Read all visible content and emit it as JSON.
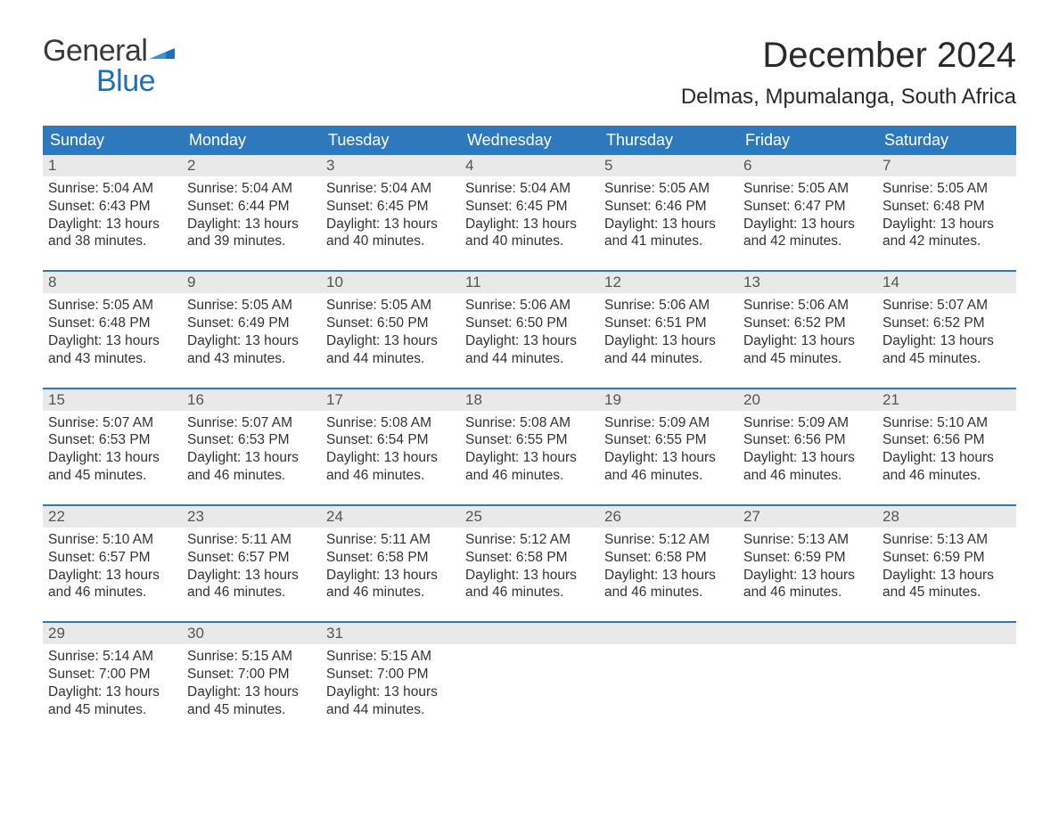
{
  "logo": {
    "text1": "General",
    "text2": "Blue",
    "flag_color": "#1e6fb8",
    "text1_color": "#3a3a3a"
  },
  "title": "December 2024",
  "location": "Delmas, Mpumalanga, South Africa",
  "header_bg": "#2e78bc",
  "header_fg": "#ffffff",
  "daynum_bg": "#e9e9e9",
  "border_color": "#2e78bc",
  "text_color": "#333333",
  "weekdays": [
    "Sunday",
    "Monday",
    "Tuesday",
    "Wednesday",
    "Thursday",
    "Friday",
    "Saturday"
  ],
  "weeks": [
    [
      {
        "n": "1",
        "sunrise": "Sunrise: 5:04 AM",
        "sunset": "Sunset: 6:43 PM",
        "d1": "Daylight: 13 hours",
        "d2": "and 38 minutes."
      },
      {
        "n": "2",
        "sunrise": "Sunrise: 5:04 AM",
        "sunset": "Sunset: 6:44 PM",
        "d1": "Daylight: 13 hours",
        "d2": "and 39 minutes."
      },
      {
        "n": "3",
        "sunrise": "Sunrise: 5:04 AM",
        "sunset": "Sunset: 6:45 PM",
        "d1": "Daylight: 13 hours",
        "d2": "and 40 minutes."
      },
      {
        "n": "4",
        "sunrise": "Sunrise: 5:04 AM",
        "sunset": "Sunset: 6:45 PM",
        "d1": "Daylight: 13 hours",
        "d2": "and 40 minutes."
      },
      {
        "n": "5",
        "sunrise": "Sunrise: 5:05 AM",
        "sunset": "Sunset: 6:46 PM",
        "d1": "Daylight: 13 hours",
        "d2": "and 41 minutes."
      },
      {
        "n": "6",
        "sunrise": "Sunrise: 5:05 AM",
        "sunset": "Sunset: 6:47 PM",
        "d1": "Daylight: 13 hours",
        "d2": "and 42 minutes."
      },
      {
        "n": "7",
        "sunrise": "Sunrise: 5:05 AM",
        "sunset": "Sunset: 6:48 PM",
        "d1": "Daylight: 13 hours",
        "d2": "and 42 minutes."
      }
    ],
    [
      {
        "n": "8",
        "sunrise": "Sunrise: 5:05 AM",
        "sunset": "Sunset: 6:48 PM",
        "d1": "Daylight: 13 hours",
        "d2": "and 43 minutes."
      },
      {
        "n": "9",
        "sunrise": "Sunrise: 5:05 AM",
        "sunset": "Sunset: 6:49 PM",
        "d1": "Daylight: 13 hours",
        "d2": "and 43 minutes."
      },
      {
        "n": "10",
        "sunrise": "Sunrise: 5:05 AM",
        "sunset": "Sunset: 6:50 PM",
        "d1": "Daylight: 13 hours",
        "d2": "and 44 minutes."
      },
      {
        "n": "11",
        "sunrise": "Sunrise: 5:06 AM",
        "sunset": "Sunset: 6:50 PM",
        "d1": "Daylight: 13 hours",
        "d2": "and 44 minutes."
      },
      {
        "n": "12",
        "sunrise": "Sunrise: 5:06 AM",
        "sunset": "Sunset: 6:51 PM",
        "d1": "Daylight: 13 hours",
        "d2": "and 44 minutes."
      },
      {
        "n": "13",
        "sunrise": "Sunrise: 5:06 AM",
        "sunset": "Sunset: 6:52 PM",
        "d1": "Daylight: 13 hours",
        "d2": "and 45 minutes."
      },
      {
        "n": "14",
        "sunrise": "Sunrise: 5:07 AM",
        "sunset": "Sunset: 6:52 PM",
        "d1": "Daylight: 13 hours",
        "d2": "and 45 minutes."
      }
    ],
    [
      {
        "n": "15",
        "sunrise": "Sunrise: 5:07 AM",
        "sunset": "Sunset: 6:53 PM",
        "d1": "Daylight: 13 hours",
        "d2": "and 45 minutes."
      },
      {
        "n": "16",
        "sunrise": "Sunrise: 5:07 AM",
        "sunset": "Sunset: 6:53 PM",
        "d1": "Daylight: 13 hours",
        "d2": "and 46 minutes."
      },
      {
        "n": "17",
        "sunrise": "Sunrise: 5:08 AM",
        "sunset": "Sunset: 6:54 PM",
        "d1": "Daylight: 13 hours",
        "d2": "and 46 minutes."
      },
      {
        "n": "18",
        "sunrise": "Sunrise: 5:08 AM",
        "sunset": "Sunset: 6:55 PM",
        "d1": "Daylight: 13 hours",
        "d2": "and 46 minutes."
      },
      {
        "n": "19",
        "sunrise": "Sunrise: 5:09 AM",
        "sunset": "Sunset: 6:55 PM",
        "d1": "Daylight: 13 hours",
        "d2": "and 46 minutes."
      },
      {
        "n": "20",
        "sunrise": "Sunrise: 5:09 AM",
        "sunset": "Sunset: 6:56 PM",
        "d1": "Daylight: 13 hours",
        "d2": "and 46 minutes."
      },
      {
        "n": "21",
        "sunrise": "Sunrise: 5:10 AM",
        "sunset": "Sunset: 6:56 PM",
        "d1": "Daylight: 13 hours",
        "d2": "and 46 minutes."
      }
    ],
    [
      {
        "n": "22",
        "sunrise": "Sunrise: 5:10 AM",
        "sunset": "Sunset: 6:57 PM",
        "d1": "Daylight: 13 hours",
        "d2": "and 46 minutes."
      },
      {
        "n": "23",
        "sunrise": "Sunrise: 5:11 AM",
        "sunset": "Sunset: 6:57 PM",
        "d1": "Daylight: 13 hours",
        "d2": "and 46 minutes."
      },
      {
        "n": "24",
        "sunrise": "Sunrise: 5:11 AM",
        "sunset": "Sunset: 6:58 PM",
        "d1": "Daylight: 13 hours",
        "d2": "and 46 minutes."
      },
      {
        "n": "25",
        "sunrise": "Sunrise: 5:12 AM",
        "sunset": "Sunset: 6:58 PM",
        "d1": "Daylight: 13 hours",
        "d2": "and 46 minutes."
      },
      {
        "n": "26",
        "sunrise": "Sunrise: 5:12 AM",
        "sunset": "Sunset: 6:58 PM",
        "d1": "Daylight: 13 hours",
        "d2": "and 46 minutes."
      },
      {
        "n": "27",
        "sunrise": "Sunrise: 5:13 AM",
        "sunset": "Sunset: 6:59 PM",
        "d1": "Daylight: 13 hours",
        "d2": "and 46 minutes."
      },
      {
        "n": "28",
        "sunrise": "Sunrise: 5:13 AM",
        "sunset": "Sunset: 6:59 PM",
        "d1": "Daylight: 13 hours",
        "d2": "and 45 minutes."
      }
    ],
    [
      {
        "n": "29",
        "sunrise": "Sunrise: 5:14 AM",
        "sunset": "Sunset: 7:00 PM",
        "d1": "Daylight: 13 hours",
        "d2": "and 45 minutes."
      },
      {
        "n": "30",
        "sunrise": "Sunrise: 5:15 AM",
        "sunset": "Sunset: 7:00 PM",
        "d1": "Daylight: 13 hours",
        "d2": "and 45 minutes."
      },
      {
        "n": "31",
        "sunrise": "Sunrise: 5:15 AM",
        "sunset": "Sunset: 7:00 PM",
        "d1": "Daylight: 13 hours",
        "d2": "and 44 minutes."
      },
      null,
      null,
      null,
      null
    ]
  ]
}
